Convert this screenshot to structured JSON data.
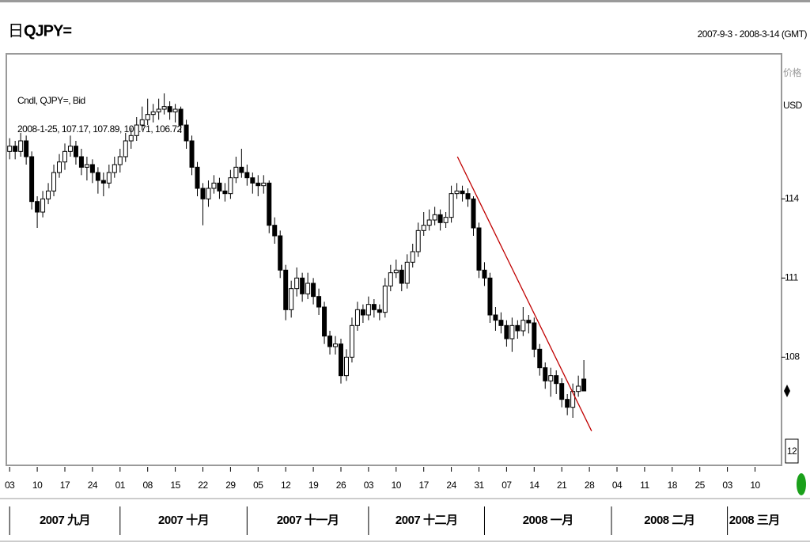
{
  "chart_data": {
    "type": "candlestick",
    "period": "日",
    "title": "QJPY=",
    "date_range": "2007-9-3 - 2008-3-14 (GMT)",
    "legend_name": "Cndl, QJPY=, Bid",
    "legend_values": "2008-1-25, 107.17, 107.89, 106.71, 106.72",
    "y_axis_label": "价格",
    "y_axis_unit": "USD",
    "price_box": "12",
    "up_color": "#ffffff",
    "down_color": "#000000",
    "ylim": [
      103.9,
      119.5
    ],
    "yticks": [
      108,
      111,
      114
    ],
    "xlim": [
      -0.6,
      139.8
    ],
    "xticks": [
      {
        "value": 0,
        "label": "03"
      },
      {
        "value": 5,
        "label": "10"
      },
      {
        "value": 10,
        "label": "17"
      },
      {
        "value": 15,
        "label": "24"
      },
      {
        "value": 20,
        "label": "01"
      },
      {
        "value": 25,
        "label": "08"
      },
      {
        "value": 30,
        "label": "15"
      },
      {
        "value": 35,
        "label": "22"
      },
      {
        "value": 40,
        "label": "29"
      },
      {
        "value": 45,
        "label": "05"
      },
      {
        "value": 50,
        "label": "12"
      },
      {
        "value": 55,
        "label": "19"
      },
      {
        "value": 60,
        "label": "26"
      },
      {
        "value": 65,
        "label": "03"
      },
      {
        "value": 70,
        "label": "10"
      },
      {
        "value": 75,
        "label": "17"
      },
      {
        "value": 80,
        "label": "24"
      },
      {
        "value": 85,
        "label": "31"
      },
      {
        "value": 90,
        "label": "07"
      },
      {
        "value": 95,
        "label": "14"
      },
      {
        "value": 100,
        "label": "21"
      },
      {
        "value": 105,
        "label": "28"
      },
      {
        "value": 110,
        "label": "04"
      },
      {
        "value": 115,
        "label": "11"
      },
      {
        "value": 120,
        "label": "18"
      },
      {
        "value": 125,
        "label": "25"
      },
      {
        "value": 130,
        "label": "03"
      },
      {
        "value": 135,
        "label": "10"
      }
    ],
    "month_ticks": [
      {
        "value": 0,
        "label": "2007 九月"
      },
      {
        "value": 20,
        "label": "2007 十月"
      },
      {
        "value": 43,
        "label": "2007 十一月"
      },
      {
        "value": 65,
        "label": "2007 十二月"
      },
      {
        "value": 86,
        "label": "2008 一月"
      },
      {
        "value": 109,
        "label": "2008 二月"
      },
      {
        "value": 130,
        "label": "2008 三月"
      }
    ],
    "trendline": {
      "x": [
        81.1,
        105.4
      ],
      "y": [
        115.6,
        105.2
      ],
      "color": "#c00000"
    },
    "ohlc": [
      [
        115.8,
        116.3,
        115.5,
        116.0
      ],
      [
        116.0,
        116.2,
        115.5,
        115.8
      ],
      [
        115.8,
        116.5,
        115.6,
        116.2
      ],
      [
        116.2,
        116.4,
        115.3,
        115.6
      ],
      [
        115.6,
        115.8,
        113.6,
        113.9
      ],
      [
        113.9,
        114.1,
        112.9,
        113.5
      ],
      [
        113.5,
        114.3,
        113.3,
        114.0
      ],
      [
        114.0,
        114.6,
        113.8,
        114.3
      ],
      [
        114.3,
        115.3,
        114.1,
        115.0
      ],
      [
        115.0,
        115.7,
        114.8,
        115.4
      ],
      [
        115.4,
        116.1,
        115.1,
        115.8
      ],
      [
        115.8,
        116.4,
        115.6,
        116.0
      ],
      [
        116.0,
        116.2,
        115.3,
        115.6
      ],
      [
        115.6,
        115.9,
        114.9,
        115.2
      ],
      [
        115.2,
        115.6,
        114.7,
        115.3
      ],
      [
        115.3,
        115.5,
        114.6,
        115.0
      ],
      [
        115.0,
        115.2,
        114.2,
        114.7
      ],
      [
        114.7,
        115.0,
        114.1,
        114.6
      ],
      [
        114.6,
        115.3,
        114.4,
        115.0
      ],
      [
        115.0,
        115.6,
        114.8,
        115.3
      ],
      [
        115.3,
        115.9,
        115.0,
        115.6
      ],
      [
        115.6,
        116.5,
        115.4,
        116.2
      ],
      [
        116.2,
        116.7,
        115.9,
        116.4
      ],
      [
        116.4,
        117.1,
        116.2,
        116.8
      ],
      [
        116.8,
        117.5,
        116.6,
        117.0
      ],
      [
        117.0,
        117.8,
        116.8,
        117.2
      ],
      [
        117.2,
        117.6,
        116.9,
        117.3
      ],
      [
        117.3,
        117.8,
        117.0,
        117.4
      ],
      [
        117.4,
        118.0,
        117.2,
        117.5
      ],
      [
        117.5,
        117.7,
        117.0,
        117.3
      ],
      [
        117.3,
        117.6,
        116.9,
        117.4
      ],
      [
        117.4,
        117.5,
        116.5,
        116.8
      ],
      [
        116.8,
        117.0,
        115.9,
        116.2
      ],
      [
        116.2,
        116.4,
        114.9,
        115.2
      ],
      [
        115.2,
        115.4,
        114.1,
        114.4
      ],
      [
        114.4,
        114.6,
        113.0,
        114.0
      ],
      [
        114.0,
        114.7,
        113.7,
        114.4
      ],
      [
        114.4,
        114.9,
        114.2,
        114.6
      ],
      [
        114.6,
        114.8,
        114.0,
        114.3
      ],
      [
        114.3,
        114.6,
        113.9,
        114.2
      ],
      [
        114.2,
        115.1,
        114.0,
        114.8
      ],
      [
        114.8,
        115.6,
        114.6,
        115.2
      ],
      [
        115.2,
        115.9,
        114.8,
        115.0
      ],
      [
        115.0,
        115.3,
        114.5,
        114.8
      ],
      [
        114.8,
        115.0,
        114.2,
        114.6
      ],
      [
        114.6,
        114.9,
        114.1,
        114.5
      ],
      [
        114.5,
        114.9,
        114.2,
        114.6
      ],
      [
        114.6,
        114.7,
        112.7,
        113.0
      ],
      [
        113.0,
        113.3,
        112.3,
        112.6
      ],
      [
        112.6,
        112.8,
        111.0,
        111.3
      ],
      [
        111.3,
        111.5,
        109.4,
        109.8
      ],
      [
        109.8,
        110.9,
        109.5,
        110.6
      ],
      [
        110.6,
        111.4,
        110.3,
        111.0
      ],
      [
        111.0,
        111.2,
        110.1,
        110.4
      ],
      [
        110.4,
        111.2,
        110.2,
        110.8
      ],
      [
        110.8,
        111.0,
        110.0,
        110.3
      ],
      [
        110.3,
        110.6,
        109.6,
        109.9
      ],
      [
        109.9,
        110.1,
        108.5,
        108.8
      ],
      [
        108.8,
        109.0,
        108.1,
        108.4
      ],
      [
        108.4,
        108.8,
        108.1,
        108.5
      ],
      [
        108.5,
        108.7,
        107.0,
        107.3
      ],
      [
        107.3,
        108.3,
        107.1,
        108.0
      ],
      [
        108.0,
        109.5,
        107.8,
        109.2
      ],
      [
        109.2,
        110.1,
        109.0,
        109.8
      ],
      [
        109.8,
        110.0,
        109.3,
        109.6
      ],
      [
        109.6,
        110.3,
        109.4,
        110.0
      ],
      [
        110.0,
        110.2,
        109.5,
        109.8
      ],
      [
        109.8,
        110.0,
        109.4,
        109.7
      ],
      [
        109.7,
        111.0,
        109.5,
        110.7
      ],
      [
        110.7,
        111.5,
        110.5,
        111.2
      ],
      [
        111.2,
        111.7,
        111.0,
        111.3
      ],
      [
        111.3,
        111.5,
        110.5,
        110.8
      ],
      [
        110.8,
        111.9,
        110.6,
        111.6
      ],
      [
        111.6,
        112.3,
        111.4,
        112.0
      ],
      [
        112.0,
        113.1,
        111.8,
        112.8
      ],
      [
        112.8,
        113.5,
        112.6,
        113.0
      ],
      [
        113.0,
        113.6,
        112.8,
        113.2
      ],
      [
        113.2,
        113.7,
        113.0,
        113.4
      ],
      [
        113.4,
        113.6,
        112.8,
        113.1
      ],
      [
        113.1,
        113.5,
        112.9,
        113.3
      ],
      [
        113.3,
        114.5,
        113.1,
        114.2
      ],
      [
        114.2,
        114.6,
        114.0,
        114.3
      ],
      [
        114.3,
        114.5,
        113.9,
        114.2
      ],
      [
        114.2,
        114.4,
        113.7,
        114.0
      ],
      [
        114.0,
        114.1,
        112.6,
        112.9
      ],
      [
        112.9,
        113.1,
        111.0,
        111.3
      ],
      [
        111.3,
        111.6,
        110.7,
        111.0
      ],
      [
        111.0,
        111.2,
        109.3,
        109.6
      ],
      [
        109.6,
        109.9,
        109.0,
        109.4
      ],
      [
        109.4,
        109.7,
        108.9,
        109.2
      ],
      [
        109.2,
        109.4,
        108.4,
        108.7
      ],
      [
        108.7,
        109.5,
        108.2,
        109.2
      ],
      [
        109.2,
        109.4,
        108.7,
        109.0
      ],
      [
        109.0,
        109.9,
        108.8,
        109.4
      ],
      [
        109.4,
        109.6,
        108.9,
        109.3
      ],
      [
        109.3,
        109.5,
        108.0,
        108.3
      ],
      [
        108.3,
        108.5,
        107.3,
        107.6
      ],
      [
        107.6,
        107.8,
        106.8,
        107.1
      ],
      [
        107.1,
        107.6,
        106.5,
        107.3
      ],
      [
        107.3,
        107.5,
        106.6,
        107.0
      ],
      [
        107.0,
        107.2,
        106.1,
        106.4
      ],
      [
        106.4,
        106.6,
        105.8,
        106.1
      ],
      [
        106.1,
        107.0,
        105.7,
        106.7
      ],
      [
        106.7,
        107.3,
        106.5,
        106.9
      ],
      [
        107.17,
        107.89,
        106.71,
        106.72
      ]
    ]
  }
}
